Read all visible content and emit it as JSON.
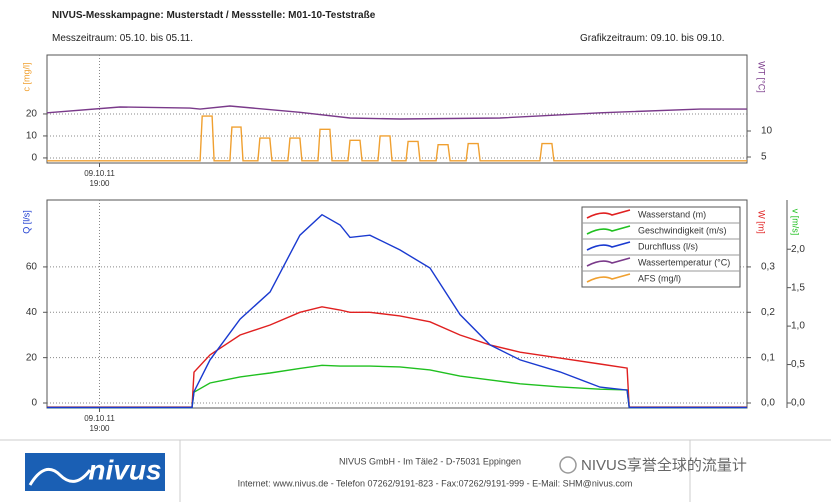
{
  "header": {
    "title": "NIVUS-Messkampagne: Musterstadt / Messstelle: M01-10-Teststraße",
    "period": "Messzeitraum: 05.10. bis 05.11.",
    "graph_period": "Grafikzeitraum: 09.10. bis 09.10."
  },
  "chart_data": [
    {
      "type": "line",
      "xlim": [
        17.2,
        41.2
      ],
      "xticks": [
        {
          "value": 19,
          "label": "09.10.11\n19:00"
        }
      ],
      "ylim": [
        -2.3,
        46.8
      ],
      "yticks": [
        0,
        10,
        20
      ],
      "y2lim": [
        3.85,
        24.6
      ],
      "y2ticks": [
        5,
        10
      ],
      "ylabel": "c [mg/l]",
      "y2label": "WT [°C]",
      "grid": true,
      "series": [
        {
          "name": "Wassertemperatur (°C)",
          "color": "#7a3a8a",
          "axis": "y2",
          "x": [
            17.2,
            19.7,
            22.1,
            22.45,
            23.47,
            25.87,
            27.59,
            29.3,
            32.73,
            36.16,
            39.59,
            41.2
          ],
          "values": [
            13.5,
            14.6,
            14.4,
            14.2,
            14.8,
            13.6,
            12.5,
            12.3,
            12.5,
            13.5,
            14.2,
            14.2
          ]
        },
        {
          "name": "AFS (mg/l)",
          "color": "#f0a030",
          "x": [
            17.2,
            22.45,
            22.52,
            22.86,
            22.93,
            23.47,
            23.54,
            23.85,
            23.92,
            24.43,
            24.5,
            24.84,
            24.91,
            25.46,
            25.53,
            25.87,
            25.94,
            26.49,
            26.56,
            26.9,
            26.97,
            27.52,
            27.59,
            27.93,
            28.0,
            28.55,
            28.62,
            28.96,
            29.03,
            29.51,
            29.58,
            29.92,
            29.99,
            30.54,
            30.61,
            30.95,
            31.02,
            31.57,
            31.64,
            31.98,
            32.05,
            34.1,
            34.17,
            34.51,
            34.58,
            41.2
          ],
          "values": [
            -1.3,
            -1.3,
            19,
            19,
            -1.3,
            -1.3,
            14,
            14,
            -1.3,
            -1.3,
            9,
            9,
            -1.3,
            -1.3,
            9,
            9,
            -1.3,
            -1.3,
            13,
            13,
            -1.3,
            -1.3,
            8,
            8,
            -1.3,
            -1.3,
            10,
            10,
            -1.3,
            -1.3,
            7.5,
            7.5,
            -1.3,
            -1.3,
            6,
            6,
            -1.3,
            -1.3,
            6.5,
            6.5,
            -1.3,
            -1.3,
            6.5,
            6.5,
            -1.3,
            -1.3
          ]
        }
      ]
    },
    {
      "type": "line",
      "xlim": [
        17.2,
        41.2
      ],
      "xticks": [
        {
          "value": 19,
          "label": "09.10.11\n19:00"
        }
      ],
      "ylim": [
        -2.2,
        89.5
      ],
      "yticks": [
        0,
        20,
        40,
        60
      ],
      "y2lim": [
        -0.011,
        0.4475
      ],
      "y2ticks": [
        {
          "value": 0,
          "label": "0,0"
        },
        {
          "value": 0.1,
          "label": "0,1"
        },
        {
          "value": 0.2,
          "label": "0,2"
        },
        {
          "value": 0.3,
          "label": "0,3"
        }
      ],
      "y3lim": [
        -0.065,
        2.64
      ],
      "y3ticks": [
        {
          "value": 0,
          "label": "0,0"
        },
        {
          "value": 0.5,
          "label": "0,5"
        },
        {
          "value": 1,
          "label": "1,0"
        },
        {
          "value": 1.5,
          "label": "1,5"
        },
        {
          "value": 2,
          "label": "2,0"
        }
      ],
      "ylabel": "Q [l/s]",
      "y2label": "W [m]",
      "y3label": "v [m/s]",
      "grid": true,
      "legend": "upper right",
      "series": [
        {
          "name": "Wasserstand (m)",
          "color": "#e02020",
          "axis": "y2",
          "x": [
            17.2,
            22.17,
            22.24,
            22.79,
            23.82,
            24.85,
            25.87,
            26.63,
            27.25,
            27.59,
            28.27,
            29.3,
            30.33,
            31.36,
            32.39,
            33.42,
            34.79,
            36.16,
            37.09,
            37.16,
            41.2
          ],
          "values": [
            -0.009,
            -0.009,
            0.068,
            0.106,
            0.15,
            0.172,
            0.2,
            0.212,
            0.205,
            0.2,
            0.2,
            0.192,
            0.179,
            0.15,
            0.128,
            0.112,
            0.099,
            0.086,
            0.077,
            -0.009,
            -0.009
          ]
        },
        {
          "name": "Geschwindigkeit (m/s)",
          "color": "#20c020",
          "axis": "y3",
          "x": [
            17.2,
            22.17,
            22.24,
            22.79,
            23.82,
            24.85,
            25.87,
            26.63,
            27.25,
            27.59,
            28.27,
            29.3,
            30.33,
            31.36,
            32.39,
            33.42,
            34.79,
            36.16,
            37.09,
            37.16,
            41.2
          ],
          "values": [
            -0.06,
            -0.06,
            0.14,
            0.26,
            0.34,
            0.39,
            0.45,
            0.49,
            0.48,
            0.48,
            0.48,
            0.47,
            0.43,
            0.35,
            0.3,
            0.25,
            0.21,
            0.18,
            0.17,
            -0.06,
            -0.06
          ]
        },
        {
          "name": "Durchfluss (l/s)",
          "color": "#1a3ad0",
          "x": [
            17.2,
            22.17,
            22.24,
            22.79,
            23.82,
            24.85,
            25.87,
            26.63,
            27.25,
            27.59,
            28.27,
            29.3,
            30.33,
            31.36,
            32.39,
            33.42,
            34.79,
            36.16,
            37.09,
            37.16,
            41.2
          ],
          "values": [
            -2,
            -2,
            5,
            19,
            37,
            49,
            74,
            83,
            78.5,
            73,
            74,
            67.5,
            59.5,
            39,
            25.6,
            19,
            13.7,
            7,
            5.7,
            -2,
            -2
          ]
        }
      ]
    }
  ],
  "footer": {
    "logo": "nivus",
    "address": "NIVUS GmbH - Im Täle2 - D-75031 Eppingen",
    "contact": "Internet: www.nivus.de - Telefon 07262/9191-823 - Fax:07262/9191-999 - E-Mail: SHM@nivus.com",
    "watermark": "NIVUS享誉全球的流量计"
  }
}
